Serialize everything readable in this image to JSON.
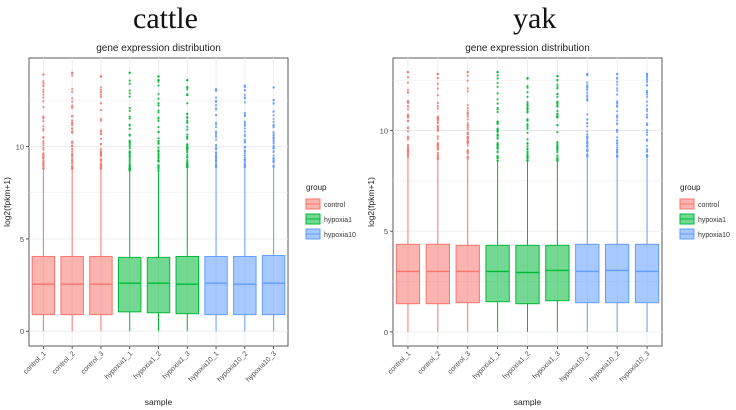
{
  "figure": {
    "panel_titles": [
      "cattle",
      "yak"
    ]
  },
  "colors": {
    "control": "#f8766d",
    "hypoxia1": "#00ba38",
    "hypoxia10": "#619cff",
    "grid": "#ebebeb",
    "axis": "#333333"
  },
  "chart_data": [
    {
      "type": "box",
      "panel": "cattle",
      "title": "gene expression distribution",
      "xlabel": "sample",
      "ylabel": "log2(fpkm+1)",
      "ylim": [
        -0.8,
        14.8
      ],
      "yticks": [
        0,
        5,
        10
      ],
      "grid": true,
      "legend": {
        "title": "group",
        "position": "right",
        "entries": [
          "control",
          "hypoxia1",
          "hypoxia10"
        ]
      },
      "categories": [
        "control_1",
        "control_2",
        "control_3",
        "hypoxia1_1",
        "hypoxia1_2",
        "hypoxia1_3",
        "hypoxia10_1",
        "hypoxia10_2",
        "hypoxia10_3"
      ],
      "groups": [
        "control",
        "control",
        "control",
        "hypoxia1",
        "hypoxia1",
        "hypoxia1",
        "hypoxia10",
        "hypoxia10",
        "hypoxia10"
      ],
      "box": [
        {
          "min": 0,
          "q1": 0.9,
          "median": 2.55,
          "q3": 4.05,
          "whisker_high": 8.8,
          "max_outlier": 13.9
        },
        {
          "min": 0,
          "q1": 0.9,
          "median": 2.55,
          "q3": 4.05,
          "whisker_high": 8.8,
          "max_outlier": 14.0
        },
        {
          "min": 0,
          "q1": 0.9,
          "median": 2.55,
          "q3": 4.05,
          "whisker_high": 8.8,
          "max_outlier": 13.8
        },
        {
          "min": 0,
          "q1": 1.05,
          "median": 2.6,
          "q3": 4.0,
          "whisker_high": 8.7,
          "max_outlier": 14.0
        },
        {
          "min": 0,
          "q1": 1.0,
          "median": 2.6,
          "q3": 4.0,
          "whisker_high": 8.7,
          "max_outlier": 13.8
        },
        {
          "min": 0,
          "q1": 0.95,
          "median": 2.55,
          "q3": 4.05,
          "whisker_high": 8.8,
          "max_outlier": 13.6
        },
        {
          "min": 0,
          "q1": 0.9,
          "median": 2.6,
          "q3": 4.05,
          "whisker_high": 8.9,
          "max_outlier": 13.1
        },
        {
          "min": 0,
          "q1": 0.9,
          "median": 2.55,
          "q3": 4.05,
          "whisker_high": 8.9,
          "max_outlier": 13.3
        },
        {
          "min": 0,
          "q1": 0.9,
          "median": 2.6,
          "q3": 4.1,
          "whisker_high": 8.9,
          "max_outlier": 13.2
        }
      ]
    },
    {
      "type": "box",
      "panel": "yak",
      "title": "gene expression distribution",
      "xlabel": "sample",
      "ylabel": "log2(fpkm+1)",
      "ylim": [
        -0.7,
        13.6
      ],
      "yticks": [
        0,
        5,
        10
      ],
      "grid": true,
      "legend": {
        "title": "group",
        "position": "right",
        "entries": [
          "control",
          "hypoxia1",
          "hypoxia10"
        ]
      },
      "categories": [
        "control_1",
        "control_2",
        "control_3",
        "hypoxia1_1",
        "hypoxia1_2",
        "hypoxia1_3",
        "hypoxia10_1",
        "hypoxia10_2",
        "hypoxia10_3"
      ],
      "groups": [
        "control",
        "control",
        "control",
        "hypoxia1",
        "hypoxia1",
        "hypoxia1",
        "hypoxia10",
        "hypoxia10",
        "hypoxia10"
      ],
      "box": [
        {
          "min": 0,
          "q1": 1.4,
          "median": 3.0,
          "q3": 4.35,
          "whisker_high": 8.6,
          "max_outlier": 12.9
        },
        {
          "min": 0,
          "q1": 1.4,
          "median": 3.0,
          "q3": 4.35,
          "whisker_high": 8.6,
          "max_outlier": 12.8
        },
        {
          "min": 0,
          "q1": 1.45,
          "median": 3.0,
          "q3": 4.3,
          "whisker_high": 8.6,
          "max_outlier": 12.9
        },
        {
          "min": 0,
          "q1": 1.5,
          "median": 3.0,
          "q3": 4.3,
          "whisker_high": 8.5,
          "max_outlier": 12.9
        },
        {
          "min": 0,
          "q1": 1.4,
          "median": 2.95,
          "q3": 4.3,
          "whisker_high": 8.5,
          "max_outlier": 12.6
        },
        {
          "min": 0,
          "q1": 1.55,
          "median": 3.05,
          "q3": 4.3,
          "whisker_high": 8.5,
          "max_outlier": 12.7
        },
        {
          "min": 0,
          "q1": 1.45,
          "median": 3.0,
          "q3": 4.35,
          "whisker_high": 8.7,
          "max_outlier": 12.8
        },
        {
          "min": 0,
          "q1": 1.45,
          "median": 3.05,
          "q3": 4.35,
          "whisker_high": 8.7,
          "max_outlier": 12.8
        },
        {
          "min": 0,
          "q1": 1.45,
          "median": 3.0,
          "q3": 4.35,
          "whisker_high": 8.7,
          "max_outlier": 12.8
        }
      ]
    }
  ]
}
